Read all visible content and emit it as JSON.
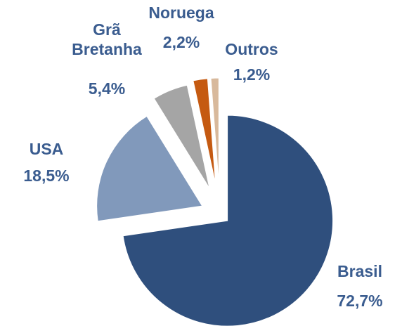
{
  "chart_data": {
    "type": "pie",
    "categories": [
      "Brasil",
      "USA",
      "Grã Bretanha",
      "Noruega",
      "Outros"
    ],
    "values": [
      72.7,
      18.5,
      5.4,
      2.2,
      1.2
    ],
    "value_labels": [
      "72,7%",
      "18,5%",
      "5,4%",
      "2,2%",
      "1,2%"
    ],
    "colors": [
      "#2f4f7d",
      "#8199bb",
      "#a5a5a5",
      "#c55a11",
      "#d8b99c"
    ]
  }
}
